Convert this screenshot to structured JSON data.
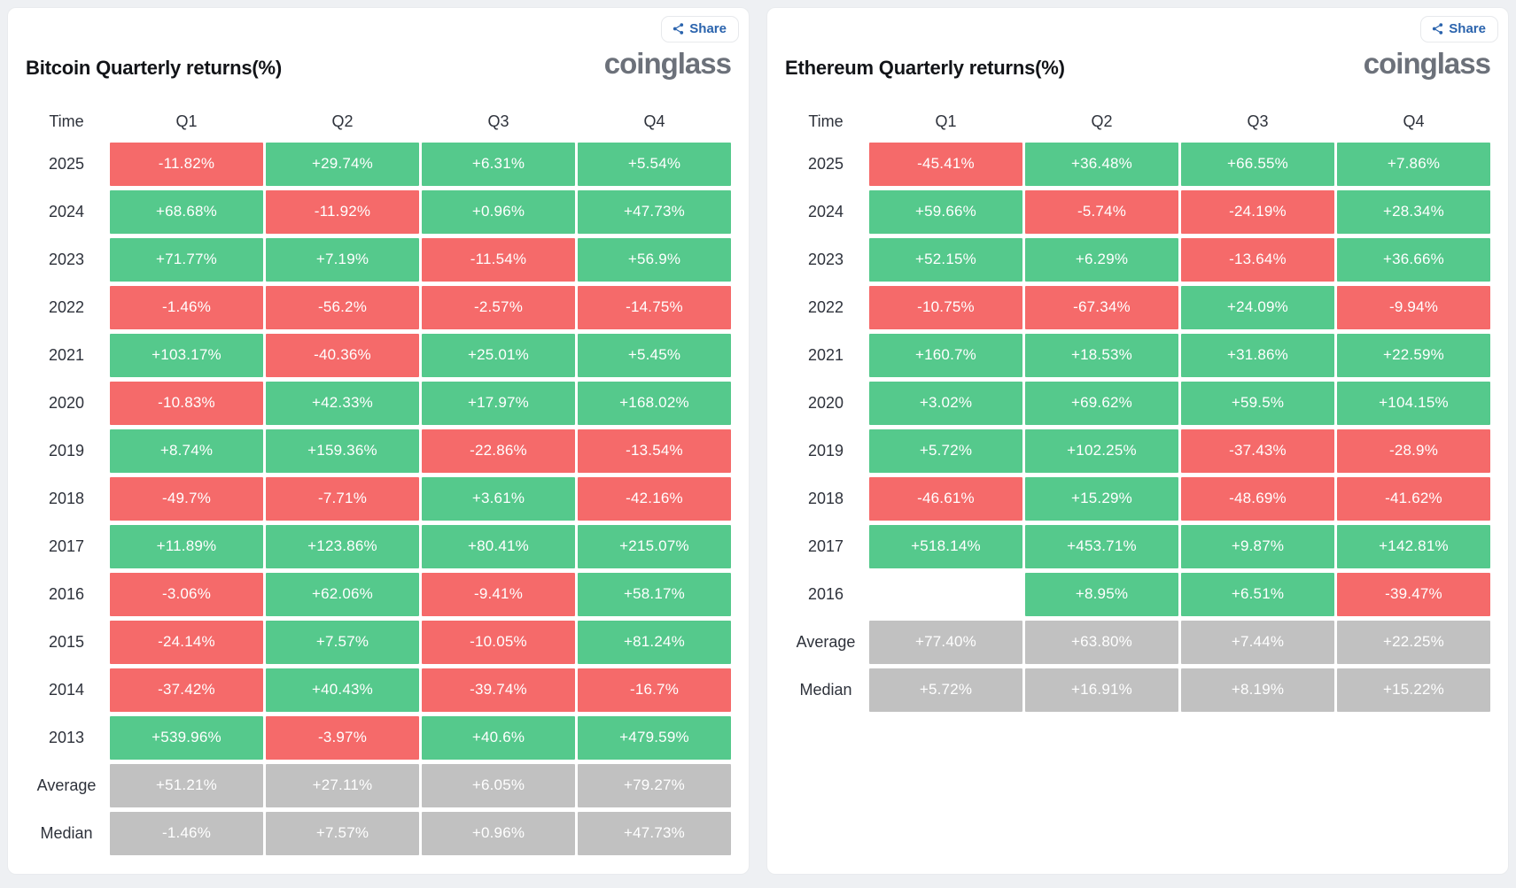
{
  "share_label": "Share",
  "logo_text": "coinglass",
  "colors": {
    "positive": "#55c98c",
    "negative": "#f56a6a",
    "neutral": "#c1c1c1",
    "accent": "#2a63ad",
    "logo": "#6c717a",
    "text": "#121418",
    "page": "#eef0f3",
    "border": "#e9ebee"
  },
  "chart_data": [
    {
      "type": "table",
      "title": "Bitcoin Quarterly returns(%)",
      "columns": [
        "Time",
        "Q1",
        "Q2",
        "Q3",
        "Q4"
      ],
      "rows": [
        {
          "label": "2025",
          "values": [
            "-11.82%",
            "+29.74%",
            "+6.31%",
            "+5.54%"
          ]
        },
        {
          "label": "2024",
          "values": [
            "+68.68%",
            "-11.92%",
            "+0.96%",
            "+47.73%"
          ]
        },
        {
          "label": "2023",
          "values": [
            "+71.77%",
            "+7.19%",
            "-11.54%",
            "+56.9%"
          ]
        },
        {
          "label": "2022",
          "values": [
            "-1.46%",
            "-56.2%",
            "-2.57%",
            "-14.75%"
          ]
        },
        {
          "label": "2021",
          "values": [
            "+103.17%",
            "-40.36%",
            "+25.01%",
            "+5.45%"
          ]
        },
        {
          "label": "2020",
          "values": [
            "-10.83%",
            "+42.33%",
            "+17.97%",
            "+168.02%"
          ]
        },
        {
          "label": "2019",
          "values": [
            "+8.74%",
            "+159.36%",
            "-22.86%",
            "-13.54%"
          ]
        },
        {
          "label": "2018",
          "values": [
            "-49.7%",
            "-7.71%",
            "+3.61%",
            "-42.16%"
          ]
        },
        {
          "label": "2017",
          "values": [
            "+11.89%",
            "+123.86%",
            "+80.41%",
            "+215.07%"
          ]
        },
        {
          "label": "2016",
          "values": [
            "-3.06%",
            "+62.06%",
            "-9.41%",
            "+58.17%"
          ]
        },
        {
          "label": "2015",
          "values": [
            "-24.14%",
            "+7.57%",
            "-10.05%",
            "+81.24%"
          ]
        },
        {
          "label": "2014",
          "values": [
            "-37.42%",
            "+40.43%",
            "-39.74%",
            "-16.7%"
          ]
        },
        {
          "label": "2013",
          "values": [
            "+539.96%",
            "-3.97%",
            "+40.6%",
            "+479.59%"
          ]
        },
        {
          "label": "Average",
          "summary": true,
          "values": [
            "+51.21%",
            "+27.11%",
            "+6.05%",
            "+79.27%"
          ]
        },
        {
          "label": "Median",
          "summary": true,
          "values": [
            "-1.46%",
            "+7.57%",
            "+0.96%",
            "+47.73%"
          ]
        }
      ]
    },
    {
      "type": "table",
      "title": "Ethereum Quarterly returns(%)",
      "columns": [
        "Time",
        "Q1",
        "Q2",
        "Q3",
        "Q4"
      ],
      "rows": [
        {
          "label": "2025",
          "values": [
            "-45.41%",
            "+36.48%",
            "+66.55%",
            "+7.86%"
          ]
        },
        {
          "label": "2024",
          "values": [
            "+59.66%",
            "-5.74%",
            "-24.19%",
            "+28.34%"
          ]
        },
        {
          "label": "2023",
          "values": [
            "+52.15%",
            "+6.29%",
            "-13.64%",
            "+36.66%"
          ]
        },
        {
          "label": "2022",
          "values": [
            "-10.75%",
            "-67.34%",
            "+24.09%",
            "-9.94%"
          ]
        },
        {
          "label": "2021",
          "values": [
            "+160.7%",
            "+18.53%",
            "+31.86%",
            "+22.59%"
          ]
        },
        {
          "label": "2020",
          "values": [
            "+3.02%",
            "+69.62%",
            "+59.5%",
            "+104.15%"
          ]
        },
        {
          "label": "2019",
          "values": [
            "+5.72%",
            "+102.25%",
            "-37.43%",
            "-28.9%"
          ]
        },
        {
          "label": "2018",
          "values": [
            "-46.61%",
            "+15.29%",
            "-48.69%",
            "-41.62%"
          ]
        },
        {
          "label": "2017",
          "values": [
            "+518.14%",
            "+453.71%",
            "+9.87%",
            "+142.81%"
          ]
        },
        {
          "label": "2016",
          "values": [
            "",
            "+8.95%",
            "+6.51%",
            "-39.47%"
          ]
        },
        {
          "label": "Average",
          "summary": true,
          "values": [
            "+77.40%",
            "+63.80%",
            "+7.44%",
            "+22.25%"
          ]
        },
        {
          "label": "Median",
          "summary": true,
          "values": [
            "+5.72%",
            "+16.91%",
            "+8.19%",
            "+15.22%"
          ]
        }
      ]
    }
  ]
}
